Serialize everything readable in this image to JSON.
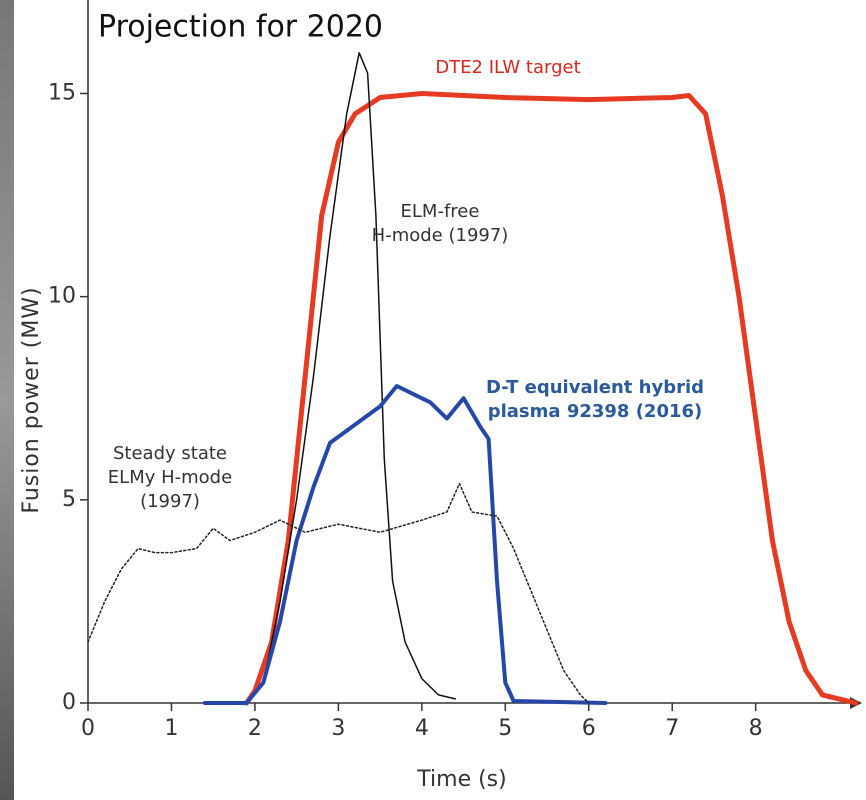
{
  "chart_data": {
    "type": "line",
    "title": "Projection for 2020",
    "x_label": "Time (s)",
    "y_label": "Fusion power (MW)",
    "xlim": [
      0,
      9.25
    ],
    "ylim": [
      0,
      17.3
    ],
    "xticks": [
      0,
      1,
      2,
      3,
      4,
      5,
      6,
      7,
      8
    ],
    "yticks": [
      0,
      5,
      10,
      15
    ],
    "series": [
      {
        "name": [
          "DTE2 ILW target"
        ],
        "color": "#e63a22",
        "width": 5,
        "dash": "solid",
        "label_color": "#d4281c",
        "x": [
          1.9,
          2.0,
          2.2,
          2.4,
          2.6,
          2.8,
          3.0,
          3.2,
          3.5,
          4.0,
          5.0,
          6.0,
          7.0,
          7.2,
          7.4,
          7.6,
          7.8,
          8.0,
          8.2,
          8.4,
          8.6,
          8.8,
          9.2
        ],
        "values": [
          0,
          0.3,
          1.5,
          4,
          8,
          12,
          13.8,
          14.5,
          14.9,
          15,
          14.9,
          14.85,
          14.9,
          14.95,
          14.5,
          12.5,
          10,
          7,
          4,
          2,
          0.8,
          0.2,
          0
        ]
      },
      {
        "name": [
          "ELM-free",
          "H-mode (1997)"
        ],
        "color": "#111111",
        "width": 1.5,
        "dash": "solid",
        "label_color": "#333333",
        "x": [
          1.9,
          2.1,
          2.3,
          2.5,
          2.7,
          2.9,
          3.1,
          3.25,
          3.35,
          3.45,
          3.55,
          3.65,
          3.8,
          4.0,
          4.2,
          4.4
        ],
        "values": [
          0,
          0.5,
          2.5,
          5,
          8,
          11.5,
          14.5,
          16,
          15.5,
          12,
          6,
          3,
          1.5,
          0.6,
          0.2,
          0.1
        ]
      },
      {
        "name": [
          "D-T equivalent hybrid",
          "plasma 92398 (2016)"
        ],
        "color": "#2548a8",
        "width": 4,
        "dash": "solid",
        "label_color": "#2a5a9a",
        "x": [
          1.4,
          1.9,
          2.1,
          2.3,
          2.5,
          2.7,
          2.9,
          3.1,
          3.3,
          3.5,
          3.7,
          3.9,
          4.1,
          4.3,
          4.5,
          4.7,
          4.8,
          4.9,
          5.0,
          5.1,
          6.2
        ],
        "values": [
          0,
          0,
          0.5,
          2,
          4,
          5.3,
          6.4,
          6.7,
          7.0,
          7.3,
          7.8,
          7.6,
          7.4,
          7.0,
          7.5,
          6.8,
          6.5,
          3,
          0.5,
          0.05,
          0
        ]
      },
      {
        "name": [
          "Steady state",
          "ELMy H-mode",
          "(1997)"
        ],
        "color": "#222222",
        "width": 1.5,
        "dash": "dotted",
        "label_color": "#333333",
        "x": [
          0,
          0.2,
          0.4,
          0.6,
          0.8,
          1.0,
          1.3,
          1.5,
          1.7,
          2.0,
          2.3,
          2.6,
          3.0,
          3.5,
          4.0,
          4.3,
          4.45,
          4.6,
          4.9,
          5.1,
          5.3,
          5.5,
          5.7,
          5.9,
          6.0
        ],
        "values": [
          1.5,
          2.5,
          3.3,
          3.8,
          3.7,
          3.7,
          3.8,
          4.3,
          4.0,
          4.2,
          4.5,
          4.2,
          4.4,
          4.2,
          4.5,
          4.7,
          5.4,
          4.7,
          4.6,
          3.8,
          2.8,
          1.8,
          0.8,
          0.2,
          0
        ]
      }
    ]
  }
}
